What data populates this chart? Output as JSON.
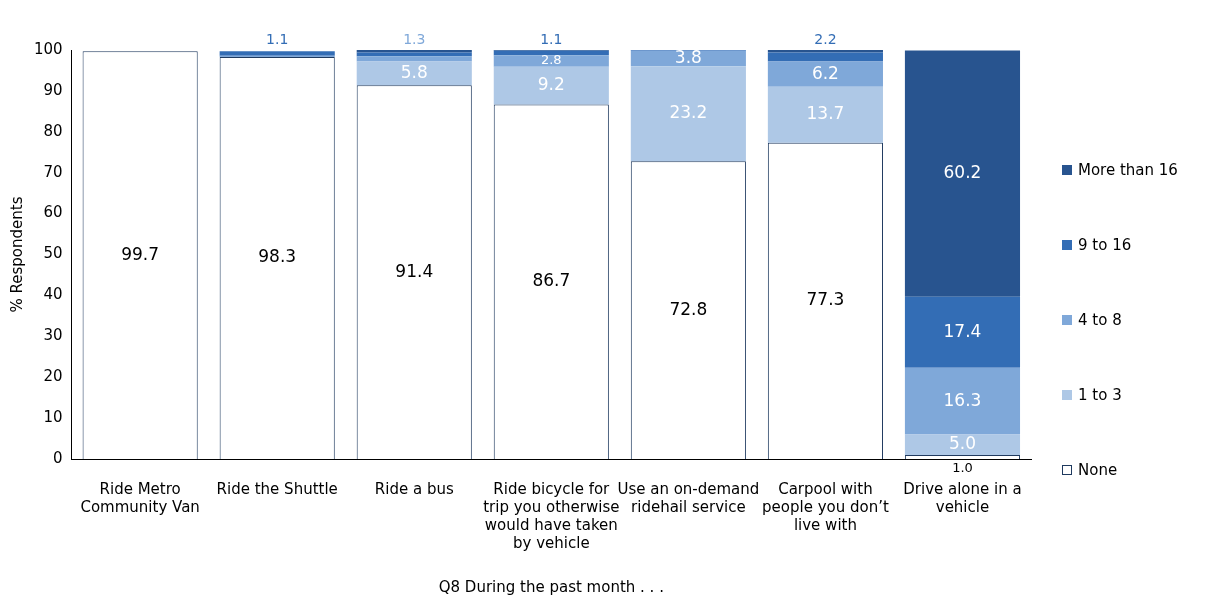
{
  "chart_data": {
    "type": "bar",
    "stacked": true,
    "ylabel": "% Respondents",
    "xlabel": "Q8 During the past month . . .",
    "categories": [
      "Ride Metro Community Van",
      "Ride the Shuttle",
      "Ride a bus",
      "Ride bicycle for trip you otherwise would have taken by vehicle",
      "Use an on-demand ridehail service",
      "Carpool with people you don’t live with",
      "Drive alone in a vehicle"
    ],
    "ylim": [
      0,
      100
    ],
    "yticks": [
      0,
      10,
      20,
      30,
      40,
      50,
      60,
      70,
      80,
      90,
      100
    ],
    "grid": false,
    "legend": "right",
    "series": [
      {
        "name": "None",
        "color": "#ffffff",
        "values": [
          99.7,
          98.3,
          91.4,
          86.7,
          72.8,
          77.3,
          1.0
        ],
        "value_labels": [
          "99.7",
          "98.3",
          "91.4",
          "86.7",
          "72.8",
          "77.3",
          "1.0"
        ]
      },
      {
        "name": "1 to 3",
        "color": "#aec8e6",
        "values": [
          null,
          null,
          5.8,
          9.2,
          23.2,
          13.7,
          5.0
        ],
        "value_labels": [
          null,
          null,
          "5.8",
          "9.2",
          "23.2",
          "13.7",
          "5.0"
        ]
      },
      {
        "name": "4 to 8",
        "color": "#7fa8d9",
        "values": [
          0,
          0.3,
          1.3,
          2.8,
          3.8,
          6.2,
          16.3
        ],
        "value_labels": [
          null,
          null,
          "1.3",
          "2.8",
          "3.8",
          "6.2",
          "16.3"
        ]
      },
      {
        "name": "9 to 16",
        "color": "#336db5",
        "values": [
          0,
          1.1,
          0.9,
          1.1,
          0.2,
          2.2,
          17.4
        ],
        "value_labels": [
          null,
          "1.1",
          null,
          "1.1",
          null,
          "2.2",
          "17.4"
        ]
      },
      {
        "name": "More than 16",
        "color": "#28548f",
        "values": [
          0,
          0,
          0.6,
          0.2,
          0,
          0.6,
          60.2
        ],
        "value_labels": [
          null,
          null,
          null,
          null,
          null,
          null,
          "60.2"
        ]
      }
    ]
  }
}
